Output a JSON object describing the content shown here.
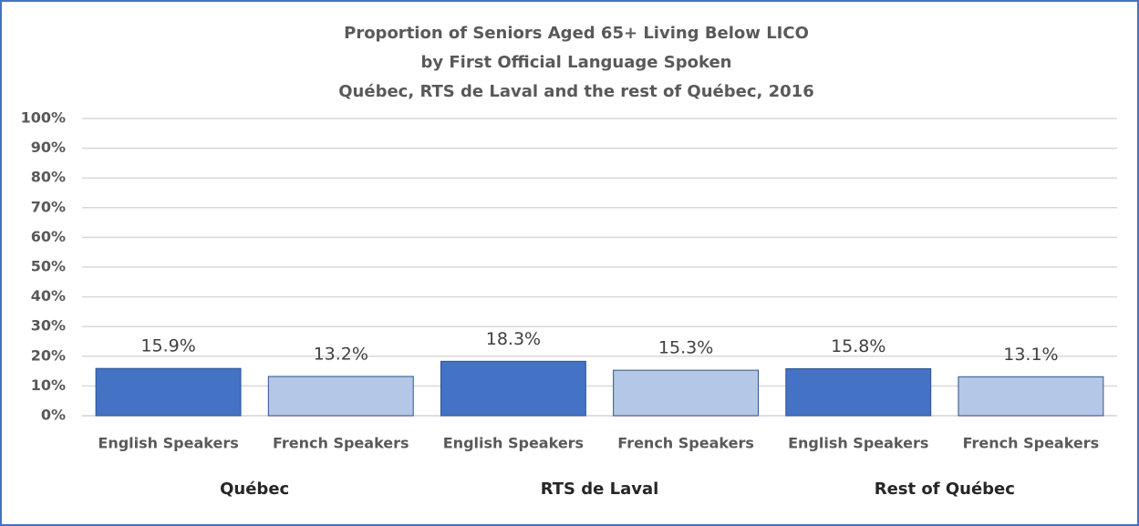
{
  "chart_data": {
    "type": "bar",
    "title": [
      "Proportion of Seniors Aged 65+ Living Below LICO",
      "by First Official Language Spoken",
      "Québec, RTS de Laval and the rest of Québec, 2016"
    ],
    "groups": [
      "Québec",
      "RTS de Laval",
      "Rest of Québec"
    ],
    "categories": [
      "English Speakers",
      "French Speakers",
      "English Speakers",
      "French Speakers",
      "English Speakers",
      "French Speakers"
    ],
    "values": [
      15.9,
      13.2,
      18.3,
      15.3,
      15.8,
      13.1
    ],
    "value_labels": [
      "15.9%",
      "13.2%",
      "18.3%",
      "15.3%",
      "15.8%",
      "13.1%"
    ],
    "colors": [
      "#4472c4",
      "#b4c7e7"
    ],
    "ylim": [
      0,
      100
    ],
    "yticks": [
      {
        "value": 0,
        "label": "0%"
      },
      {
        "value": 10,
        "label": "10%"
      },
      {
        "value": 20,
        "label": "20%"
      },
      {
        "value": 30,
        "label": "30%"
      },
      {
        "value": 40,
        "label": "40%"
      },
      {
        "value": 50,
        "label": "50%"
      },
      {
        "value": 60,
        "label": "60%"
      },
      {
        "value": 70,
        "label": "70%"
      },
      {
        "value": 80,
        "label": "80%"
      },
      {
        "value": 90,
        "label": "90%"
      },
      {
        "value": 100,
        "label": "100%"
      }
    ],
    "grid": true
  }
}
